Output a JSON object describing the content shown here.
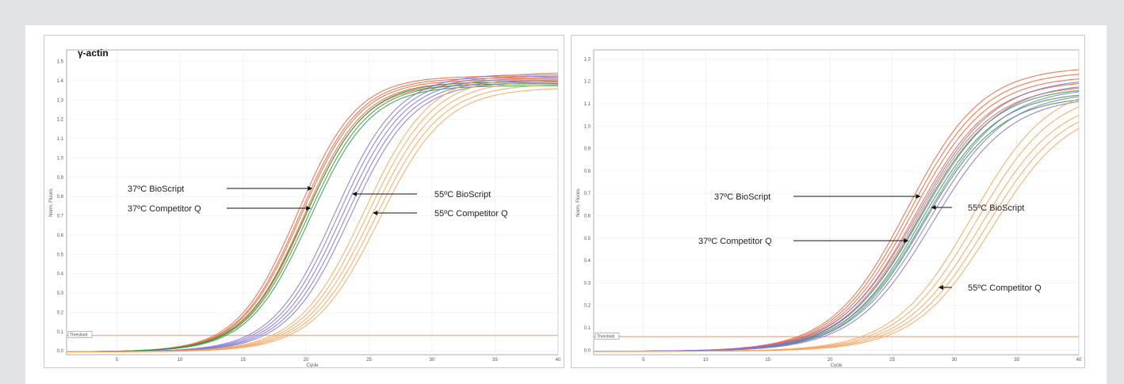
{
  "chart_data": [
    {
      "type": "line",
      "gene_label": "γ-actin",
      "xlabel": "Cycle",
      "ylabel": "Norm. Fluoro.",
      "xlim": [
        1,
        40
      ],
      "ylim": [
        -0.02,
        1.56
      ],
      "x_ticks": [
        5,
        10,
        15,
        20,
        25,
        30,
        35,
        40
      ],
      "y_ticks": [
        0.0,
        0.1,
        0.2,
        0.3,
        0.4,
        0.5,
        0.6,
        0.7,
        0.8,
        0.9,
        1.0,
        1.1,
        1.2,
        1.3,
        1.4,
        1.5
      ],
      "threshold": {
        "label": "Threshold",
        "value": 0.08
      },
      "grid": true,
      "series": [
        {
          "name": "37ºC BioScript",
          "color": "#e8643c",
          "midpoints": [
            19.3,
            19.5,
            19.6,
            19.8,
            19.9
          ],
          "plateaus": [
            1.43,
            1.42,
            1.41,
            1.4,
            1.39
          ],
          "slope": 0.42
        },
        {
          "name": "37ºC Competitor Q",
          "color": "#2e9a3a",
          "midpoints": [
            19.9,
            20.1,
            20.3
          ],
          "plateaus": [
            1.4,
            1.39,
            1.38
          ],
          "slope": 0.41
        },
        {
          "name": "55ºC BioScript",
          "color": "#7f74cc",
          "midpoints": [
            22.3,
            22.6,
            22.9,
            23.2,
            23.5
          ],
          "plateaus": [
            1.44,
            1.43,
            1.42,
            1.41,
            1.4
          ],
          "slope": 0.4
        },
        {
          "name": "55ºC Competitor Q",
          "color": "#f5a45a",
          "midpoints": [
            24.6,
            24.9,
            25.2,
            25.5,
            25.8
          ],
          "plateaus": [
            1.45,
            1.43,
            1.41,
            1.39,
            1.37
          ],
          "slope": 0.38
        }
      ],
      "annotations": [
        {
          "text": "37ºC BioScript",
          "color": "#e8643c",
          "point_x": 19.95,
          "text_side": "left"
        },
        {
          "text": "37ºC Competitor Q",
          "color": "#2e9a3a",
          "point_x": 20.2,
          "text_side": "left"
        },
        {
          "text": "55ºC BioScript",
          "color": "#7f74cc",
          "point_x": 22.9,
          "text_side": "right"
        },
        {
          "text": "55ºC Competitor Q",
          "color": "#f5a45a",
          "point_x": 25.2,
          "text_side": "right"
        }
      ]
    },
    {
      "type": "line",
      "gene_label": "",
      "xlabel": "Cycle",
      "ylabel": "Norm. Fluoro.",
      "xlim": [
        1,
        40
      ],
      "ylim": [
        -0.02,
        1.34
      ],
      "x_ticks": [
        5,
        10,
        15,
        20,
        25,
        30,
        35,
        40
      ],
      "y_ticks": [
        0.0,
        0.1,
        0.2,
        0.3,
        0.4,
        0.5,
        0.6,
        0.7,
        0.8,
        0.9,
        1.0,
        1.1,
        1.2,
        1.3
      ],
      "threshold": {
        "label": "Threshold",
        "value": 0.06
      },
      "grid": true,
      "series": [
        {
          "name": "37ºC BioScript",
          "color": "#e8643c",
          "midpoints": [
            26.2,
            26.4,
            26.6,
            26.8,
            27.0
          ],
          "plateaus": [
            1.27,
            1.25,
            1.23,
            1.21,
            1.19
          ],
          "slope": 0.33
        },
        {
          "name": "37ºC Competitor Q",
          "color": "#2e9a3a",
          "midpoints": [
            27.1,
            27.3,
            27.5
          ],
          "plateaus": [
            1.18,
            1.16,
            1.14
          ],
          "slope": 0.33
        },
        {
          "name": "55ºC BioScript",
          "color": "#7f74cc",
          "midpoints": [
            27.0,
            27.3,
            27.6,
            27.9,
            28.2
          ],
          "plateaus": [
            1.22,
            1.2,
            1.18,
            1.16,
            1.14
          ],
          "slope": 0.32
        },
        {
          "name": "55ºC Competitor Q",
          "color": "#f5a45a",
          "midpoints": [
            31.4,
            31.8,
            32.2,
            32.6,
            33.0
          ],
          "plateaus": [
            1.2,
            1.17,
            1.14,
            1.12,
            1.1
          ],
          "slope": 0.32
        }
      ],
      "annotations": [
        {
          "text": "37ºC BioScript",
          "color": "#e8643c",
          "point_x": 26.6,
          "text_side": "left"
        },
        {
          "text": "37ºC Competitor Q",
          "color": "#2e9a3a",
          "point_x": 27.3,
          "text_side": "left"
        },
        {
          "text": "55ºC BioScript",
          "color": "#7f74cc",
          "point_x": 27.6,
          "text_side": "right"
        },
        {
          "text": "55ºC Competitor Q",
          "color": "#f5a45a",
          "point_x": 32.2,
          "text_side": "right"
        }
      ]
    }
  ]
}
